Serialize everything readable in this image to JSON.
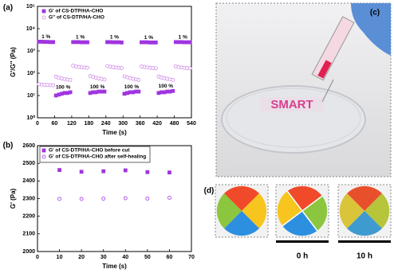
{
  "chart_data": [
    {
      "type": "scatter",
      "panel_label": "(a)",
      "xlabel": "Time (s)",
      "ylabel": "G'/G'' (Pa)",
      "x": [
        5,
        15,
        25,
        35,
        45,
        55,
        65,
        75,
        85,
        95,
        105,
        115,
        125,
        135,
        145,
        155,
        165,
        175,
        185,
        195,
        205,
        215,
        225,
        235,
        245,
        255,
        265,
        275,
        285,
        295,
        305,
        315,
        325,
        335,
        345,
        355,
        365,
        375,
        385,
        395,
        405,
        415,
        425,
        435,
        445,
        455,
        465,
        475,
        485,
        495,
        505,
        515,
        525,
        535
      ],
      "xlim": [
        0,
        540
      ],
      "xticks": [
        0,
        60,
        120,
        180,
        240,
        300,
        360,
        420,
        480,
        540
      ],
      "ylim": [
        1,
        100000
      ],
      "log_y": true,
      "yticks": [
        {
          "value": 1,
          "label": "10⁰"
        },
        {
          "value": 10,
          "label": "10¹"
        },
        {
          "value": 100,
          "label": "10²"
        },
        {
          "value": 1000,
          "label": "10³"
        },
        {
          "value": 10000,
          "label": "10⁴"
        },
        {
          "value": 100000,
          "label": "10⁵"
        }
      ],
      "legend": "upper left",
      "series": [
        {
          "name": "G' of CS-DTP/HA-CHO",
          "color": "#a035e0",
          "marker": "square",
          "filled": true,
          "values": [
            2600,
            2600,
            2550,
            2550,
            2500,
            2500,
            10,
            11,
            12,
            13,
            13,
            14,
            2500,
            2500,
            2500,
            2450,
            2450,
            2450,
            13,
            14,
            14,
            15,
            15,
            15,
            2500,
            2500,
            2450,
            2450,
            2450,
            2400,
            12,
            13,
            14,
            14,
            15,
            15,
            2450,
            2450,
            2450,
            2400,
            2400,
            2400,
            13,
            14,
            14,
            15,
            15,
            16,
            2500,
            2500,
            2500,
            2450,
            2450,
            2450
          ]
        },
        {
          "name": "G'' of CS-DTP/HA-CHO",
          "color": "#cf8be8",
          "marker": "circle",
          "filled": false,
          "values": [
            32,
            31,
            30,
            30,
            29,
            29,
            70,
            62,
            58,
            55,
            52,
            50,
            220,
            200,
            190,
            185,
            180,
            175,
            75,
            68,
            62,
            58,
            55,
            52,
            210,
            195,
            185,
            180,
            175,
            170,
            72,
            65,
            60,
            56,
            53,
            50,
            200,
            190,
            180,
            175,
            170,
            165,
            70,
            64,
            60,
            56,
            53,
            50,
            200,
            190,
            180,
            175,
            170,
            165
          ]
        }
      ],
      "annotations": [
        "1 %",
        "100 %",
        "1 %",
        "100 %",
        "1 %",
        "100 %",
        "1 %",
        "100 %",
        "1 %"
      ]
    },
    {
      "type": "scatter",
      "panel_label": "(b)",
      "xlabel": "Time (s)",
      "ylabel": "G' (Pa)",
      "x": [
        10,
        20,
        30,
        40,
        50,
        60
      ],
      "xlim": [
        0,
        70
      ],
      "xticks": [
        0,
        10,
        20,
        30,
        40,
        50,
        60,
        70
      ],
      "ylim": [
        2000,
        2600
      ],
      "yticks": [
        2000,
        2100,
        2200,
        2300,
        2400,
        2500,
        2600
      ],
      "legend": "upper left",
      "series": [
        {
          "name": "G' of CS-DTP/HA-CHO before cut",
          "color": "#a035e0",
          "marker": "square",
          "filled": true,
          "values": [
            2462,
            2452,
            2455,
            2460,
            2450,
            2448
          ]
        },
        {
          "name": "G' of CS-DTP/HA-CHO after self-healing",
          "color": "#a035e0",
          "marker": "circle",
          "filled": false,
          "values": [
            2298,
            2298,
            2300,
            2302,
            2300,
            2305
          ]
        }
      ]
    }
  ],
  "panels": {
    "c": {
      "label": "(c)",
      "text": "SMART"
    },
    "d": {
      "label": "(d)",
      "captions": [
        "0 h",
        "10 h"
      ]
    }
  }
}
